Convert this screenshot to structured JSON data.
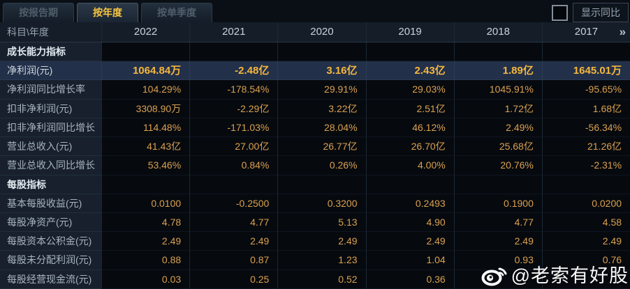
{
  "tabs": [
    {
      "label": "按报告期",
      "active": false
    },
    {
      "label": "按年度",
      "active": true
    },
    {
      "label": "按单季度",
      "active": false
    }
  ],
  "controls": {
    "show_yoy_label": "显示同比",
    "checkbox_checked": false
  },
  "table": {
    "corner_label": "科目\\年度",
    "years": [
      "2022",
      "2021",
      "2020",
      "2019",
      "2018",
      "2017"
    ],
    "more_icon": "»",
    "rows": [
      {
        "type": "section",
        "label": "成长能力指标",
        "values": [
          "",
          "",
          "",
          "",
          "",
          ""
        ]
      },
      {
        "type": "data",
        "highlight": true,
        "label": "净利润(元)",
        "values": [
          "1064.84万",
          "-2.48亿",
          "3.16亿",
          "2.43亿",
          "1.89亿",
          "1645.01万"
        ]
      },
      {
        "type": "data",
        "label": "净利润同比增长率",
        "values": [
          "104.29%",
          "-178.54%",
          "29.91%",
          "29.03%",
          "1045.91%",
          "-95.65%"
        ]
      },
      {
        "type": "data",
        "label": "扣非净利润(元)",
        "values": [
          "3308.90万",
          "-2.29亿",
          "3.22亿",
          "2.51亿",
          "1.72亿",
          "1.68亿"
        ]
      },
      {
        "type": "data",
        "label": "扣非净利润同比增长率",
        "values": [
          "114.48%",
          "-171.03%",
          "28.04%",
          "46.12%",
          "2.49%",
          "-56.34%"
        ]
      },
      {
        "type": "data",
        "label": "营业总收入(元)",
        "values": [
          "41.43亿",
          "27.00亿",
          "26.77亿",
          "26.70亿",
          "25.68亿",
          "21.26亿"
        ]
      },
      {
        "type": "data",
        "label": "营业总收入同比增长率",
        "values": [
          "53.46%",
          "0.84%",
          "0.26%",
          "4.00%",
          "20.76%",
          "-2.31%"
        ]
      },
      {
        "type": "section",
        "label": "每股指标",
        "values": [
          "",
          "",
          "",
          "",
          "",
          ""
        ]
      },
      {
        "type": "data",
        "label": "基本每股收益(元)",
        "values": [
          "0.0100",
          "-0.2500",
          "0.3200",
          "0.2493",
          "0.1900",
          "0.0200"
        ]
      },
      {
        "type": "data",
        "label": "每股净资产(元)",
        "values": [
          "4.78",
          "4.77",
          "5.13",
          "4.90",
          "4.77",
          "4.58"
        ]
      },
      {
        "type": "data",
        "label": "每股资本公积金(元)",
        "values": [
          "2.49",
          "2.49",
          "2.49",
          "2.49",
          "2.49",
          "2.49"
        ]
      },
      {
        "type": "data",
        "label": "每股未分配利润(元)",
        "values": [
          "0.88",
          "0.87",
          "1.23",
          "1.04",
          "0.93",
          "0.76"
        ]
      },
      {
        "type": "data",
        "label": "每股经营现金流(元)",
        "values": [
          "0.03",
          "0.25",
          "0.52",
          "0.36",
          "",
          ""
        ]
      }
    ]
  },
  "watermark": {
    "text": "@老索有好股",
    "icon": "weibo-icon"
  },
  "colors": {
    "accent_gold": "#f5c542",
    "value_gold": "#dba04f",
    "highlight_value_gold": "#f5b73e",
    "highlight_row_bg": "#223049",
    "label_col_bg": "#17202c",
    "header_bg": "#141d28",
    "page_bg": "#060a0f"
  }
}
